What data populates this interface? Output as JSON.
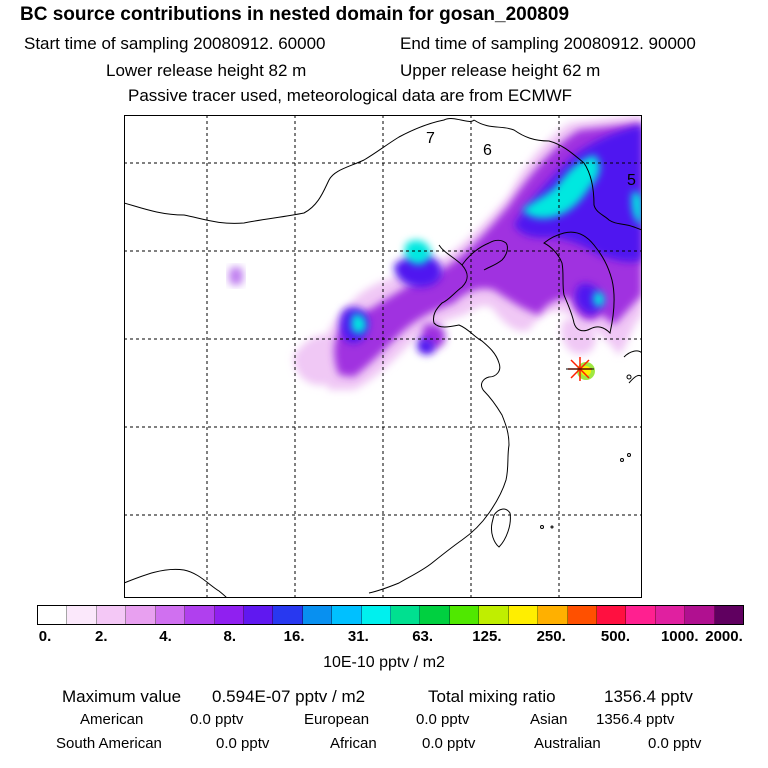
{
  "title": "BC  source contributions in nested domain for gosan_200809",
  "sampling": {
    "start": "Start time of sampling 20080912. 60000",
    "end": "End time of sampling 20080912. 90000"
  },
  "release": {
    "lower": "Lower release height   82 m",
    "upper": "Upper release height   62 m"
  },
  "note": "Passive tracer used, meteorological data are from ECMWF",
  "map": {
    "contour_labels": [
      "7",
      "6",
      "5"
    ],
    "receptor_marker": "star-marker",
    "colors": {
      "coast": "#000000",
      "grid": "#000000",
      "plume_low": "#f0c8f5",
      "plume_mid": "#a030e0",
      "plume_high": "#5018f0",
      "plume_peak": "#00e8e0",
      "receptor_fill": "#ffee00",
      "receptor_star": "#ff2000"
    }
  },
  "colorbar": {
    "colors": [
      "#ffffff",
      "#fbe8fb",
      "#f4c8f6",
      "#e8a0f0",
      "#d070f0",
      "#b040ee",
      "#9020f0",
      "#6018f0",
      "#2838f0",
      "#0890f0",
      "#00c0ff",
      "#00f0ee",
      "#00e090",
      "#00d040",
      "#50e800",
      "#c0ee00",
      "#ffee00",
      "#ffb000",
      "#ff5000",
      "#ff1040",
      "#ff2090",
      "#e020a0",
      "#b01090",
      "#600060"
    ],
    "tick_labels": [
      "0.",
      "2.",
      "4.",
      "8.",
      "16.",
      "31.",
      "63.",
      "125.",
      "250.",
      "500.",
      "1000.",
      "2000."
    ],
    "unit": "10E-10 pptv / m2"
  },
  "summary": {
    "maximum_label": "Maximum value",
    "maximum_value": "0.594E-07 pptv / m2",
    "total_label": "Total mixing ratio",
    "total_value": "1356.4 pptv",
    "regions": [
      {
        "name": "American",
        "value": "0.0 pptv"
      },
      {
        "name": "European",
        "value": "0.0 pptv"
      },
      {
        "name": "Asian",
        "value": "1356.4 pptv"
      },
      {
        "name": "South American",
        "value": "0.0 pptv"
      },
      {
        "name": "African",
        "value": "0.0 pptv"
      },
      {
        "name": "Australian",
        "value": "0.0 pptv"
      }
    ]
  }
}
